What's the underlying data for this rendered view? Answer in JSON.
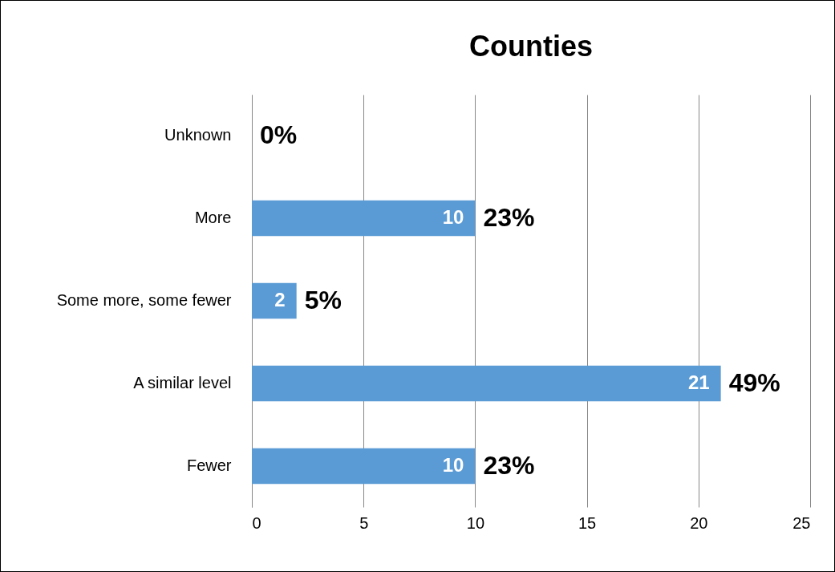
{
  "chart_data": {
    "type": "bar",
    "orientation": "horizontal",
    "title": "Counties",
    "categories": [
      "Unknown",
      "More",
      "Some more, some fewer",
      "A similar level",
      "Fewer"
    ],
    "values": [
      0,
      10,
      2,
      21,
      10
    ],
    "color": "#5b9bd5",
    "value_labels": [
      null,
      "10",
      "2",
      "21",
      "10"
    ],
    "annotations": [
      {
        "text": "0%",
        "x": 0,
        "y": "Unknown"
      },
      {
        "text": "23%",
        "x": 10,
        "y": "More"
      },
      {
        "text": "5%",
        "x": 2,
        "y": "Some more, some fewer"
      },
      {
        "text": "49%",
        "x": 21,
        "y": "A similar level"
      },
      {
        "text": "23%",
        "x": 10,
        "y": "Fewer"
      }
    ],
    "xlim": [
      0,
      25
    ],
    "xticks": [
      0,
      5,
      10,
      15,
      20,
      25
    ],
    "grid": "x"
  }
}
